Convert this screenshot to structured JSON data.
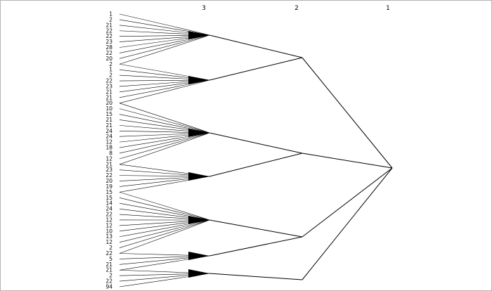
{
  "levels": [
    "3",
    "2",
    "1"
  ],
  "leaf_labels": [
    "1",
    "2",
    "21",
    "22",
    "22",
    "23",
    "28",
    "22",
    "20",
    "2",
    "1",
    "2",
    "22",
    "23",
    "21",
    "21",
    "20",
    "10",
    "15",
    "21",
    "21",
    "24",
    "24",
    "12",
    "18",
    "8",
    "12",
    "21",
    "23",
    "22",
    "20",
    "19",
    "15",
    "15",
    "14",
    "24",
    "22",
    "12",
    "12",
    "10",
    "13",
    "12",
    "2",
    "22",
    "5",
    "21",
    "21",
    "2",
    "22",
    "94"
  ]
}
